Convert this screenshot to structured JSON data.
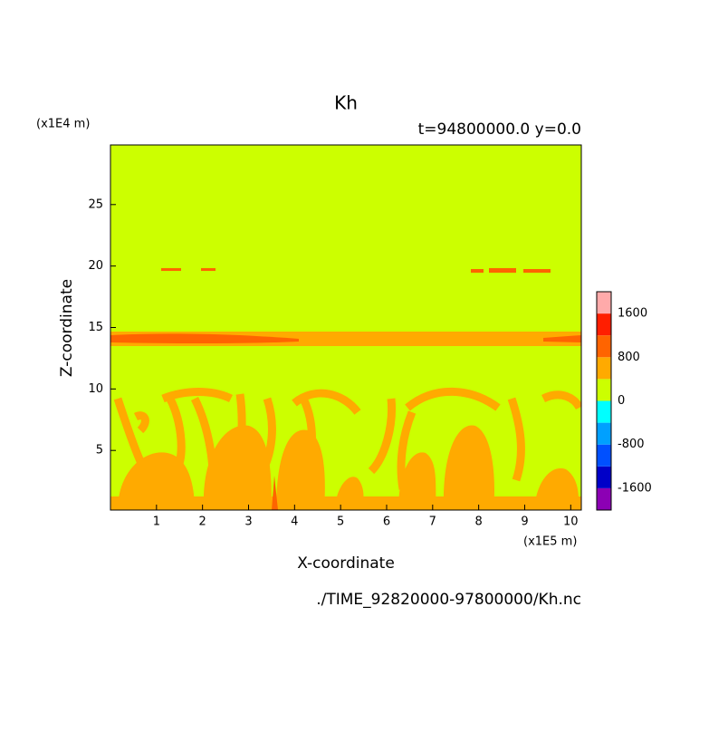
{
  "chart_data": {
    "type": "contour",
    "title": "Kh",
    "subtitle": "t=94800000.0 y=0.0",
    "y_unit": "(x1E4 m)",
    "x_unit": "(x1E5 m)",
    "xlabel": "X-coordinate",
    "ylabel": "Z-coordinate",
    "xlim": [
      0,
      10.23
    ],
    "ylim": [
      0.15,
      29.85
    ],
    "xticks": [
      1,
      2,
      3,
      4,
      5,
      6,
      7,
      8,
      9,
      10
    ],
    "yticks": [
      5,
      10,
      15,
      20,
      25
    ],
    "colorbar": {
      "levels": [
        -1600,
        -1200,
        -800,
        -400,
        0,
        400,
        800,
        1200,
        1600
      ],
      "colors": [
        "#8c00b4",
        "#0000c8",
        "#0050ff",
        "#00a0ff",
        "#00ffff",
        "#ccff00",
        "#ffaa00",
        "#ff6400",
        "#ff1e00",
        "#ffaaaa"
      ],
      "ticks": [
        -1600,
        -800,
        0,
        800,
        1600
      ]
    },
    "footer": "./TIME_92820000-97800000/Kh.nc"
  }
}
